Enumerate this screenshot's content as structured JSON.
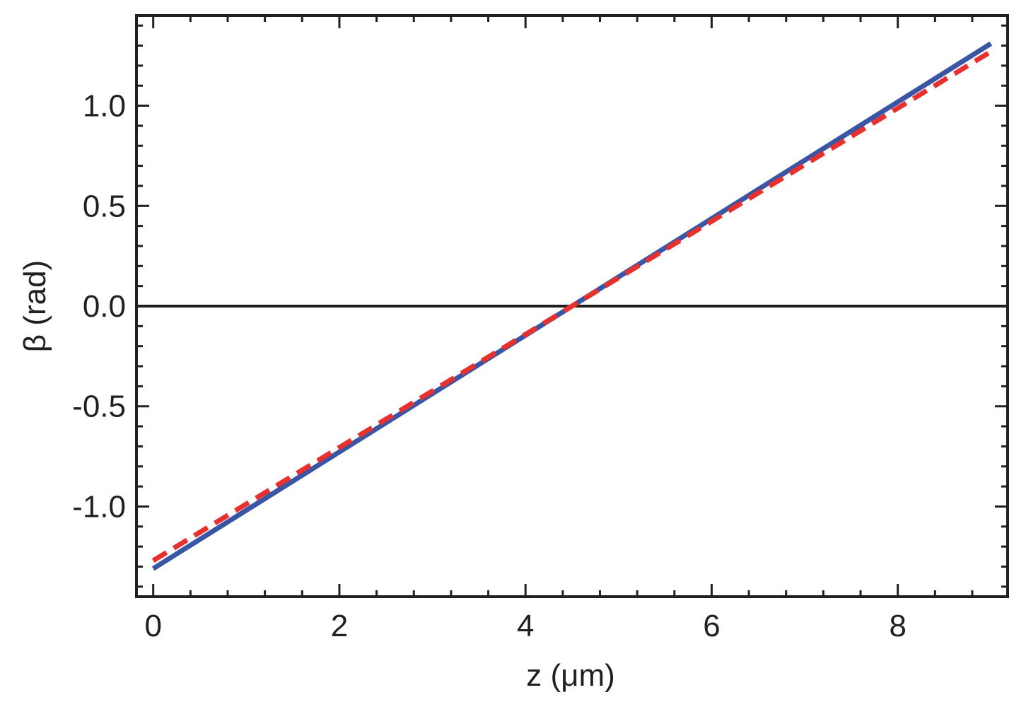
{
  "chart_data": {
    "type": "line",
    "title": "",
    "xlabel": "z (μm)",
    "ylabel": "β (rad)",
    "xlim": [
      -0.18,
      9.18
    ],
    "ylim": [
      -1.45,
      1.45
    ],
    "x_ticks": [
      0,
      2,
      4,
      6,
      8
    ],
    "x_tick_labels": [
      "0",
      "2",
      "4",
      "6",
      "8"
    ],
    "y_ticks": [
      -1.0,
      -0.5,
      0.0,
      0.5,
      1.0
    ],
    "y_tick_labels": [
      "-1.0",
      "-0.5",
      "0.0",
      "0.5",
      "1.0"
    ],
    "x_minor_step": 0.4,
    "y_minor_step": 0.1,
    "grid": false,
    "legend": "none",
    "reference_line": {
      "y": 0.0,
      "color": "#231f20"
    },
    "series": [
      {
        "x": [
          0,
          9
        ],
        "y": [
          -1.31,
          1.31
        ],
        "color": "#3a55a4",
        "style": "solid"
      },
      {
        "x": [
          0,
          9
        ],
        "y": [
          -1.27,
          1.27
        ],
        "color": "#e8312f",
        "style": "dashed"
      }
    ]
  }
}
